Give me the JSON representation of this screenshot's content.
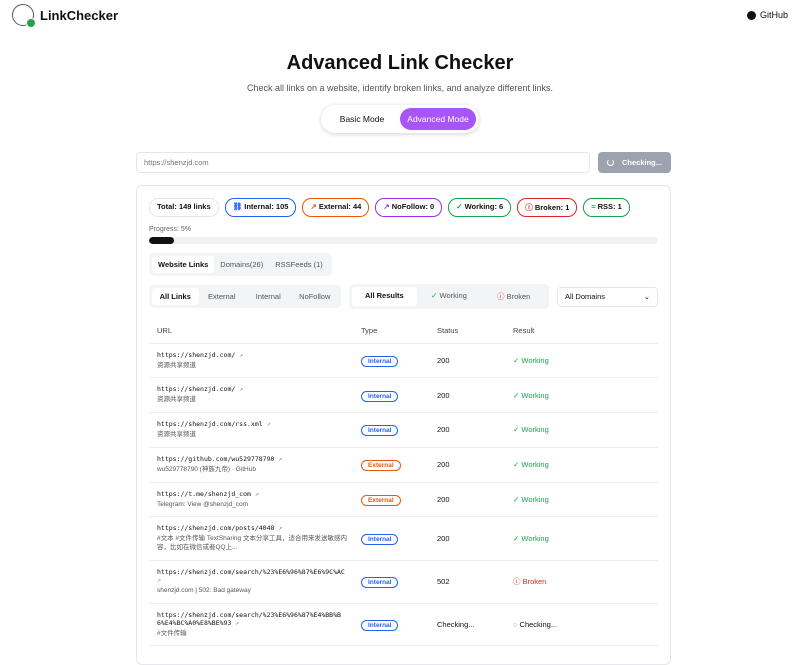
{
  "nav": {
    "brand": "LinkChecker",
    "github": "GitHub"
  },
  "hero": {
    "title": "Advanced Link Checker",
    "subtitle": "Check all links on a website, identify broken links, and analyze different links."
  },
  "modes": [
    {
      "label": "Basic Mode",
      "active": false
    },
    {
      "label": "Advanced Mode",
      "active": true
    }
  ],
  "search": {
    "value": "https://shenzjd.com",
    "button": "Checking..."
  },
  "badges": [
    {
      "label": "Total: 149 links",
      "color": "#e5e7eb",
      "icon": ""
    },
    {
      "label": "Internal: 105",
      "color": "#2563eb",
      "icon": "link-icon"
    },
    {
      "label": "External: 44",
      "color": "#ea580c",
      "icon": "external-link-icon"
    },
    {
      "label": "NoFollow: 0",
      "color": "#9333ea",
      "icon": "external-link-icon"
    },
    {
      "label": "Working: 6",
      "color": "#16a34a",
      "icon": "check-circle-icon"
    },
    {
      "label": "Broken: 1",
      "color": "#dc2626",
      "icon": "alert-circle-icon"
    },
    {
      "label": "RSS: 1",
      "color": "#16a34a",
      "icon": "rss-icon"
    }
  ],
  "progress": {
    "label": "Progress: 5%",
    "percent": 5
  },
  "tabs": [
    {
      "label": "Website Links",
      "active": true
    },
    {
      "label": "Domains(26)",
      "active": false
    },
    {
      "label": "RSSFeeds (1)",
      "active": false
    }
  ],
  "link_filters": [
    {
      "label": "All Links",
      "active": true
    },
    {
      "label": "External"
    },
    {
      "label": "Internal"
    },
    {
      "label": "NoFollow"
    }
  ],
  "result_filters": [
    {
      "label": "All Results",
      "active": true,
      "icon": ""
    },
    {
      "label": "Working",
      "icon": "check-circle-icon"
    },
    {
      "label": "Broken",
      "icon": "alert-circle-icon"
    }
  ],
  "domain_select": "All Domains",
  "table": {
    "headers": [
      "URL",
      "Type",
      "Status",
      "Result"
    ],
    "rows": [
      {
        "url": "https://shenzjd.com/",
        "title": "资源共享频道",
        "type": "Internal",
        "status": "200",
        "result": "Working"
      },
      {
        "url": "https://shenzjd.com/",
        "title": "资源共享频道",
        "type": "Internal",
        "status": "200",
        "result": "Working"
      },
      {
        "url": "https://shenzjd.com/rss.xml",
        "title": "资源共享频道",
        "type": "Internal",
        "status": "200",
        "result": "Working"
      },
      {
        "url": "https://github.com/wu529778790",
        "title": "wu529778790 (神族九帝) · GitHub",
        "type": "External",
        "status": "200",
        "result": "Working"
      },
      {
        "url": "https://t.me/shenzjd_com",
        "title": "Telegram: View @shenzjd_com",
        "type": "External",
        "status": "200",
        "result": "Working"
      },
      {
        "url": "https://shenzjd.com/posts/4048",
        "title": "#文本 #文件传输 TextSharing 文本分享工具，适合用来发送敏感内容，比如在微信或者QQ上...",
        "type": "Internal",
        "status": "200",
        "result": "Working"
      },
      {
        "url": "https://shenzjd.com/search/%23%E6%96%87%E6%9C%AC",
        "title": "shenzjd.com | 502: Bad gateway",
        "type": "Internal",
        "status": "502",
        "result": "Broken"
      },
      {
        "url": "https://shenzjd.com/search/%23%E6%96%87%E4%BB%B6%E4%BC%A0%E8%BE%93",
        "title": "#文件传输",
        "type": "Internal",
        "status": "Checking...",
        "result": "Checking..."
      }
    ]
  }
}
